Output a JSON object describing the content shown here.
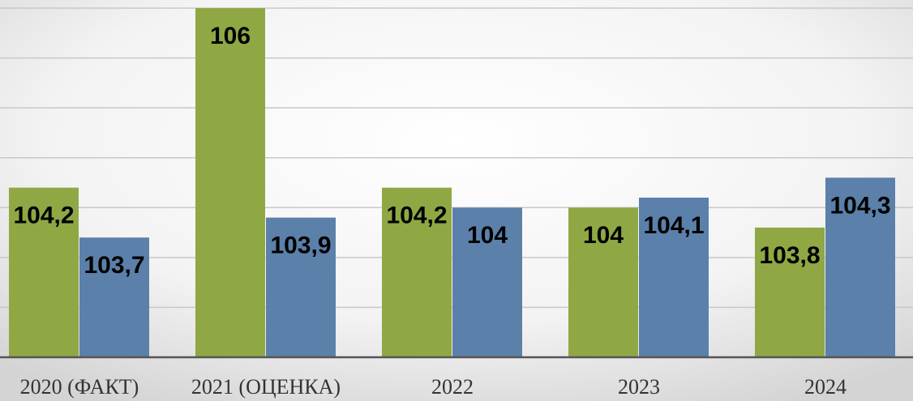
{
  "chart_data": {
    "type": "bar",
    "categories": [
      "2020 (ФАКТ)",
      "2021 (ОЦЕНКА)",
      "2022",
      "2023",
      "2024"
    ],
    "series": [
      {
        "color": "#8fa844",
        "values": [
          104.2,
          106,
          104.2,
          104,
          103.8
        ],
        "value_labels": [
          "104,2",
          "106",
          "104,2",
          "104",
          "103,8"
        ]
      },
      {
        "color": "#5b80aa",
        "values": [
          103.7,
          103.9,
          104,
          104.1,
          104.3
        ],
        "value_labels": [
          "103,7",
          "103,9",
          "104",
          "104,1",
          "104,3"
        ]
      }
    ],
    "ylim": [
      102.5,
      106
    ],
    "yticks": [
      102.5,
      103,
      103.5,
      104,
      104.5,
      105,
      105.5,
      106
    ],
    "grid": true
  }
}
